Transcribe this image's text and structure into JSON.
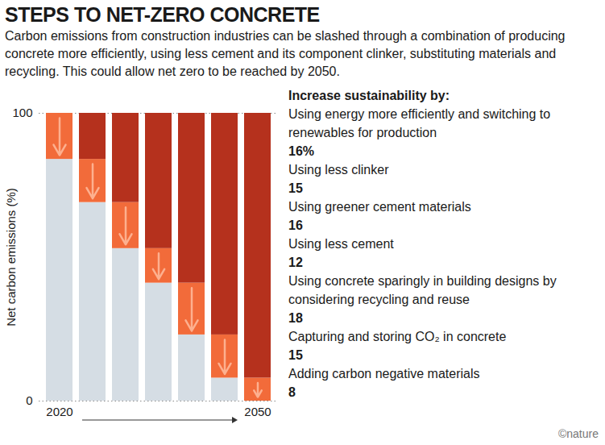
{
  "chart_data": {
    "type": "bar",
    "stacked": true,
    "title": "STEPS TO NET-ZERO CONCRETE",
    "subtitle": "Carbon emissions from construction industries can be slashed through a combination of producing concrete more efficiently, using less cement and its component clinker, substituting materials and recycling. This could allow net zero to be reached by 2050.",
    "ylabel": "Net carbon emissions (%)",
    "categories": [
      "2020",
      null,
      null,
      null,
      null,
      null,
      "2050"
    ],
    "ylim": [
      0,
      100
    ],
    "yticks": [
      0,
      100
    ],
    "grid": true,
    "steps_heading": "Increase sustainability by:",
    "series": [
      {
        "color": "#d5dde4",
        "values": [
          84,
          69,
          53,
          41,
          23,
          8,
          0
        ]
      },
      {
        "color": "#f26b3a",
        "values": [
          16,
          15,
          16,
          12,
          18,
          15,
          8
        ],
        "labels": [
          "Using energy more efficiently and switching to renewables for production",
          "Using less clinker",
          "Using greener cement materials",
          "Using less cement",
          "Using concrete sparingly in building designs by considering recycling and reuse",
          "Capturing and storing CO₂ in concrete",
          "Adding carbon negative materials"
        ],
        "value_labels": [
          "16%",
          "15",
          "16",
          "12",
          "18",
          "15",
          "8"
        ]
      },
      {
        "color": "#b5311d",
        "values": [
          0,
          16,
          31,
          47,
          59,
          77,
          92
        ]
      }
    ],
    "credit": "©nature"
  }
}
